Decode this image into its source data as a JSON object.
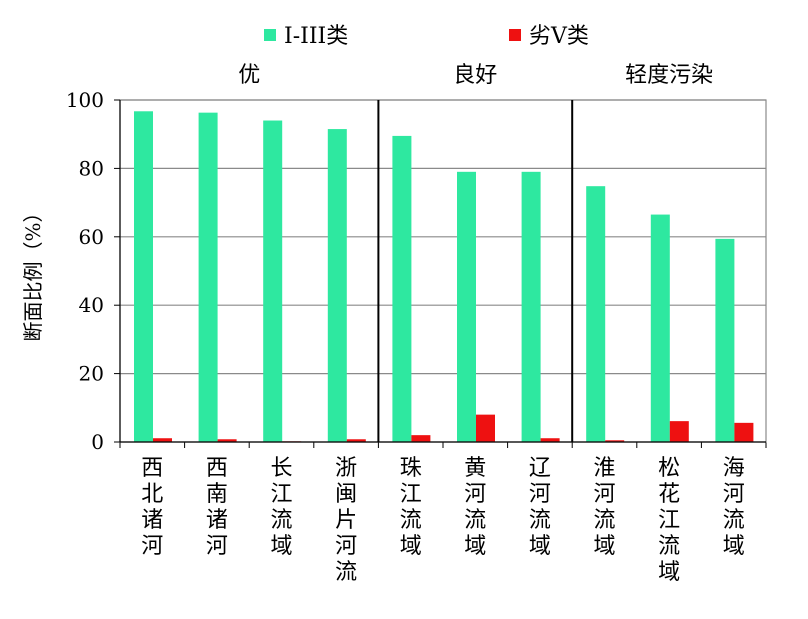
{
  "chart_data": {
    "type": "bar",
    "ylabel": "断面比例（%）",
    "ylim": [
      0,
      100
    ],
    "yticks": [
      0,
      20,
      40,
      60,
      80,
      100
    ],
    "grid": true,
    "legend_position": "top",
    "categories": [
      "西北诸河",
      "西南诸河",
      "长江流域",
      "浙闽片河流",
      "珠江流域",
      "黄河流域",
      "辽河流域",
      "淮河流域",
      "松花江流域",
      "海河流域"
    ],
    "series": [
      {
        "name": "I-III类",
        "color": "#2ee8a0",
        "values": [
          96.7,
          96.3,
          94.0,
          91.5,
          89.5,
          79.0,
          79.0,
          74.8,
          66.5,
          59.4
        ]
      },
      {
        "name": "劣V类",
        "color": "#ee1111",
        "values": [
          1.1,
          0.8,
          0.2,
          0.8,
          2.0,
          8.0,
          1.1,
          0.5,
          6.1,
          5.6
        ]
      }
    ],
    "groups": [
      {
        "label": "优",
        "count": 4
      },
      {
        "label": "良好",
        "count": 3
      },
      {
        "label": "轻度污染",
        "count": 3
      }
    ]
  }
}
